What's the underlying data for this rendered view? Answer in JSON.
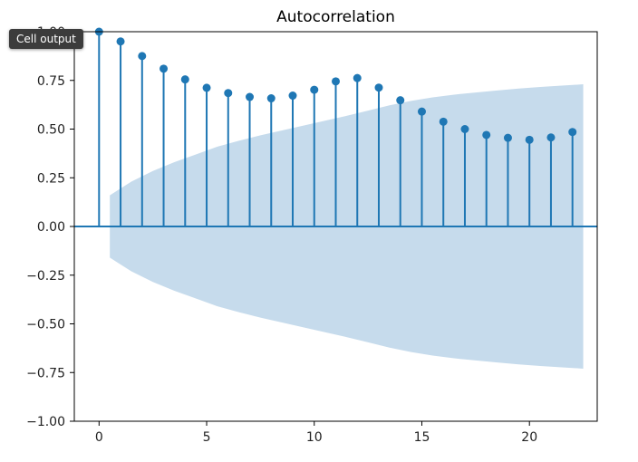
{
  "tooltip": {
    "label": "Cell output"
  },
  "chart_data": {
    "type": "stem",
    "title": "Autocorrelation",
    "xlabel": "",
    "ylabel": "",
    "xlim": [
      -1.15,
      23.15
    ],
    "ylim": [
      -1.0,
      1.0
    ],
    "x_ticks": [
      0,
      5,
      10,
      15,
      20
    ],
    "x_tick_labels": [
      "0",
      "5",
      "10",
      "15",
      "20"
    ],
    "y_ticks": [
      -1.0,
      -0.75,
      -0.5,
      -0.25,
      0.0,
      0.25,
      0.5,
      0.75,
      1.0
    ],
    "y_tick_labels": [
      "−1.00",
      "−0.75",
      "−0.50",
      "−0.25",
      "0.00",
      "0.25",
      "0.50",
      "0.75",
      "1.00"
    ],
    "grid": false,
    "colors": {
      "stem": "#1f77b4",
      "band": "#c6dbec",
      "axes": "#000000"
    },
    "lags": [
      0,
      1,
      2,
      3,
      4,
      5,
      6,
      7,
      8,
      9,
      10,
      11,
      12,
      13,
      14,
      15,
      16,
      17,
      18,
      19,
      20,
      21,
      22
    ],
    "acf": [
      1.0,
      0.95,
      0.875,
      0.81,
      0.755,
      0.712,
      0.685,
      0.665,
      0.658,
      0.672,
      0.702,
      0.745,
      0.762,
      0.713,
      0.648,
      0.59,
      0.538,
      0.5,
      0.47,
      0.455,
      0.445,
      0.457,
      0.485
    ],
    "confidence_band": {
      "x": [
        0.5,
        1.5,
        2.5,
        3.5,
        4.5,
        5.5,
        6.5,
        7.5,
        8.5,
        9.5,
        10.5,
        11.5,
        12.5,
        13.5,
        14.5,
        15.5,
        16.5,
        17.5,
        18.5,
        19.5,
        20.5,
        21.5,
        22.5
      ],
      "upper": [
        0.16,
        0.23,
        0.285,
        0.33,
        0.37,
        0.41,
        0.44,
        0.468,
        0.493,
        0.518,
        0.543,
        0.568,
        0.595,
        0.622,
        0.645,
        0.663,
        0.677,
        0.688,
        0.698,
        0.708,
        0.716,
        0.723,
        0.73
      ],
      "lower": [
        -0.16,
        -0.23,
        -0.285,
        -0.33,
        -0.37,
        -0.41,
        -0.44,
        -0.468,
        -0.493,
        -0.518,
        -0.543,
        -0.568,
        -0.595,
        -0.622,
        -0.645,
        -0.663,
        -0.677,
        -0.688,
        -0.698,
        -0.708,
        -0.716,
        -0.723,
        -0.73
      ]
    }
  }
}
